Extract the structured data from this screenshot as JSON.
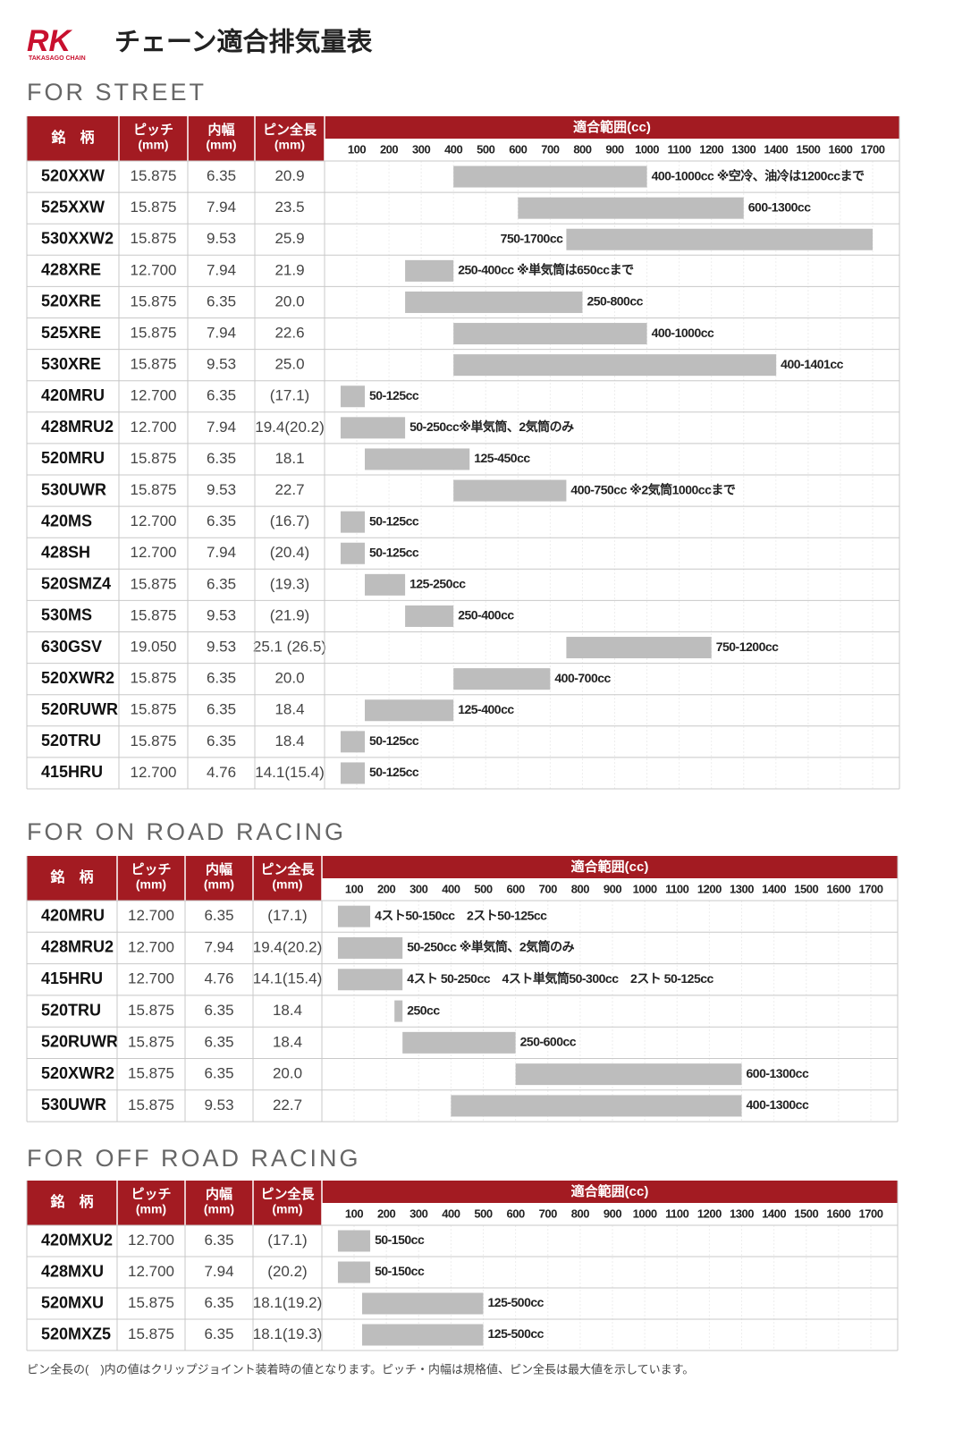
{
  "logo": {
    "mark": "RK",
    "sub": "TAKASAGO CHAIN"
  },
  "title": "チェーン適合排気量表",
  "tables": [
    {
      "section": "FOR STREET",
      "columns": [
        {
          "name": "銘　柄"
        },
        {
          "name": "ピッチ",
          "unit": "(mm)"
        },
        {
          "name": "内幅",
          "unit": "(mm)"
        },
        {
          "name": "ピン全長",
          "unit": "(mm)"
        }
      ],
      "range_header": "適合範囲(cc)",
      "scale": [
        100,
        200,
        300,
        400,
        500,
        600,
        700,
        800,
        900,
        1000,
        1100,
        1200,
        1300,
        1400,
        1500,
        1600,
        1700
      ],
      "rows": [
        {
          "name": "520XXW",
          "pitch": "15.875",
          "width": "6.35",
          "pin": "20.9",
          "range": [
            400,
            1000
          ],
          "label": "400-1000cc ※空冷、油冷は1200ccまで"
        },
        {
          "name": "525XXW",
          "pitch": "15.875",
          "width": "7.94",
          "pin": "23.5",
          "range": [
            600,
            1300
          ],
          "label": "600-1300cc"
        },
        {
          "name": "530XXW2",
          "pitch": "15.875",
          "width": "9.53",
          "pin": "25.9",
          "range": [
            750,
            1700
          ],
          "label": "750-1700cc"
        },
        {
          "name": "428XRE",
          "pitch": "12.700",
          "width": "7.94",
          "pin": "21.9",
          "range": [
            250,
            400
          ],
          "label": "250-400cc ※単気筒は650ccまで"
        },
        {
          "name": "520XRE",
          "pitch": "15.875",
          "width": "6.35",
          "pin": "20.0",
          "range": [
            250,
            800
          ],
          "label": "250-800cc"
        },
        {
          "name": "525XRE",
          "pitch": "15.875",
          "width": "7.94",
          "pin": "22.6",
          "range": [
            400,
            1000
          ],
          "label": "400-1000cc"
        },
        {
          "name": "530XRE",
          "pitch": "15.875",
          "width": "9.53",
          "pin": "25.0",
          "range": [
            400,
            1401
          ],
          "label": "400-1401cc"
        },
        {
          "name": "420MRU",
          "pitch": "12.700",
          "width": "6.35",
          "pin": "(17.1)",
          "range": [
            50,
            125
          ],
          "label": "50-125cc"
        },
        {
          "name": "428MRU2",
          "pitch": "12.700",
          "width": "7.94",
          "pin": "19.4(20.2)",
          "range": [
            50,
            250
          ],
          "label": "50-250cc※単気筒、2気筒のみ"
        },
        {
          "name": "520MRU",
          "pitch": "15.875",
          "width": "6.35",
          "pin": "18.1",
          "range": [
            125,
            450
          ],
          "label": "125-450cc"
        },
        {
          "name": "530UWR",
          "pitch": "15.875",
          "width": "9.53",
          "pin": "22.7",
          "range": [
            400,
            750
          ],
          "label": "400-750cc ※2気筒1000ccまで"
        },
        {
          "name": "420MS",
          "pitch": "12.700",
          "width": "6.35",
          "pin": "(16.7)",
          "range": [
            50,
            125
          ],
          "label": "50-125cc"
        },
        {
          "name": "428SH",
          "pitch": "12.700",
          "width": "7.94",
          "pin": "(20.4)",
          "range": [
            50,
            125
          ],
          "label": "50-125cc"
        },
        {
          "name": "520SMZ4",
          "pitch": "15.875",
          "width": "6.35",
          "pin": "(19.3)",
          "range": [
            125,
            250
          ],
          "label": "125-250cc"
        },
        {
          "name": "530MS",
          "pitch": "15.875",
          "width": "9.53",
          "pin": "(21.9)",
          "range": [
            250,
            400
          ],
          "label": "250-400cc"
        },
        {
          "name": "630GSV",
          "pitch": "19.050",
          "width": "9.53",
          "pin": "25.1 (26.5)",
          "range": [
            750,
            1200
          ],
          "label": "750-1200cc"
        },
        {
          "name": "520XWR2",
          "pitch": "15.875",
          "width": "6.35",
          "pin": "20.0",
          "range": [
            400,
            700
          ],
          "label": "400-700cc"
        },
        {
          "name": "520RUWR",
          "pitch": "15.875",
          "width": "6.35",
          "pin": "18.4",
          "range": [
            125,
            400
          ],
          "label": "125-400cc"
        },
        {
          "name": "520TRU",
          "pitch": "15.875",
          "width": "6.35",
          "pin": "18.4",
          "range": [
            50,
            125
          ],
          "label": "50-125cc"
        },
        {
          "name": "415HRU",
          "pitch": "12.700",
          "width": "4.76",
          "pin": "14.1(15.4)",
          "range": [
            50,
            125
          ],
          "label": "50-125cc"
        }
      ]
    },
    {
      "section": "FOR ON ROAD RACING",
      "columns": [
        {
          "name": "銘　柄"
        },
        {
          "name": "ピッチ",
          "unit": "(mm)"
        },
        {
          "name": "内幅",
          "unit": "(mm)"
        },
        {
          "name": "ピン全長",
          "unit": "(mm)"
        }
      ],
      "range_header": "適合範囲(cc)",
      "scale": [
        100,
        200,
        300,
        400,
        500,
        600,
        700,
        800,
        900,
        1000,
        1100,
        1200,
        1300,
        1400,
        1500,
        1600,
        1700
      ],
      "rows": [
        {
          "name": "420MRU",
          "pitch": "12.700",
          "width": "6.35",
          "pin": "(17.1)",
          "range": [
            50,
            150
          ],
          "label": "4スト50-150cc　2スト50-125cc"
        },
        {
          "name": "428MRU2",
          "pitch": "12.700",
          "width": "7.94",
          "pin": "19.4(20.2)",
          "range": [
            50,
            250
          ],
          "label": "50-250cc ※単気筒、2気筒のみ"
        },
        {
          "name": "415HRU",
          "pitch": "12.700",
          "width": "4.76",
          "pin": "14.1(15.4)",
          "range": [
            50,
            250
          ],
          "label": "4スト 50-250cc　4スト単気筒50-300cc　2スト 50-125cc"
        },
        {
          "name": "520TRU",
          "pitch": "15.875",
          "width": "6.35",
          "pin": "18.4",
          "range": [
            250,
            250
          ],
          "label": "250cc"
        },
        {
          "name": "520RUWR",
          "pitch": "15.875",
          "width": "6.35",
          "pin": "18.4",
          "range": [
            250,
            600
          ],
          "label": "250-600cc"
        },
        {
          "name": "520XWR2",
          "pitch": "15.875",
          "width": "6.35",
          "pin": "20.0",
          "range": [
            600,
            1300
          ],
          "label": "600-1300cc"
        },
        {
          "name": "530UWR",
          "pitch": "15.875",
          "width": "9.53",
          "pin": "22.7",
          "range": [
            400,
            1300
          ],
          "label": "400-1300cc"
        }
      ]
    },
    {
      "section": "FOR OFF ROAD RACING",
      "columns": [
        {
          "name": "銘　柄"
        },
        {
          "name": "ピッチ",
          "unit": "(mm)"
        },
        {
          "name": "内幅",
          "unit": "(mm)"
        },
        {
          "name": "ピン全長",
          "unit": "(mm)"
        }
      ],
      "range_header": "適合範囲(cc)",
      "scale": [
        100,
        200,
        300,
        400,
        500,
        600,
        700,
        800,
        900,
        1000,
        1100,
        1200,
        1300,
        1400,
        1500,
        1600,
        1700
      ],
      "rows": [
        {
          "name": "420MXU2",
          "pitch": "12.700",
          "width": "6.35",
          "pin": "(17.1)",
          "range": [
            50,
            150
          ],
          "label": "50-150cc"
        },
        {
          "name": "428MXU",
          "pitch": "12.700",
          "width": "7.94",
          "pin": "(20.2)",
          "range": [
            50,
            150
          ],
          "label": "50-150cc"
        },
        {
          "name": "520MXU",
          "pitch": "15.875",
          "width": "6.35",
          "pin": "18.1(19.2)",
          "range": [
            125,
            500
          ],
          "label": "125-500cc"
        },
        {
          "name": "520MXZ5",
          "pitch": "15.875",
          "width": "6.35",
          "pin": "18.1(19.3)",
          "range": [
            125,
            500
          ],
          "label": "125-500cc"
        }
      ]
    }
  ],
  "footnote": "ピン全長の(　)内の値はクリップジョイント装着時の値となります。ピッチ・内幅は規格値、ピン全長は最大値を示しています。"
}
